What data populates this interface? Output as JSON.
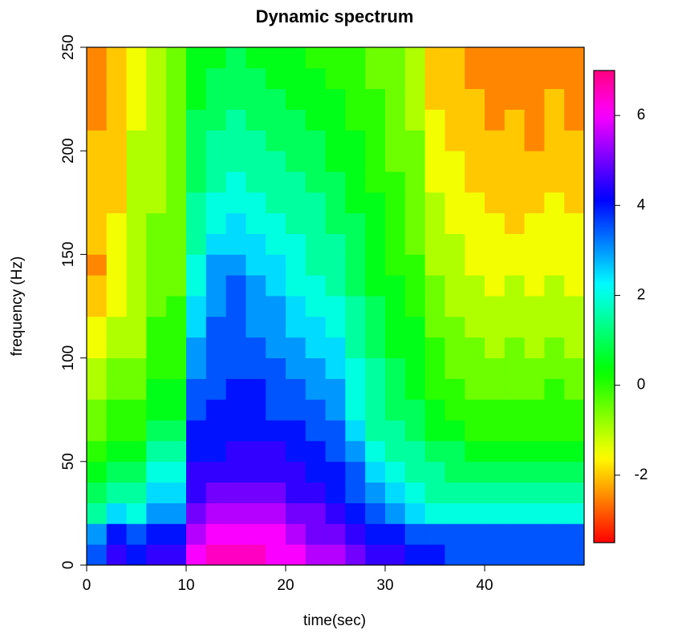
{
  "chart_data": {
    "type": "heatmap",
    "title": "Dynamic spectrum",
    "xlabel": "time(sec)",
    "ylabel": "frequency (Hz)",
    "colormap": "rainbow",
    "x": [
      1,
      3,
      5,
      7,
      9,
      11,
      13,
      15,
      17,
      19,
      21,
      23,
      25,
      27,
      29,
      31,
      33,
      35,
      37,
      39,
      41,
      43,
      45,
      47,
      49
    ],
    "y": [
      5,
      15,
      25,
      35,
      45,
      55,
      65,
      75,
      85,
      95,
      105,
      115,
      125,
      135,
      145,
      155,
      165,
      175,
      185,
      195,
      205,
      215,
      225,
      235,
      245
    ],
    "xlim": [
      0,
      50
    ],
    "xticks": [
      0,
      10,
      20,
      30,
      40
    ],
    "ylim": [
      0,
      250
    ],
    "yticks": [
      0,
      50,
      100,
      150,
      200,
      250
    ],
    "zlim": [
      -3.5,
      7
    ],
    "zticks": [
      -2,
      0,
      2,
      4,
      6
    ],
    "values": [
      [
        3.5,
        4.5,
        4,
        4.5,
        4.5,
        6,
        6.5,
        6.5,
        6.5,
        6,
        6,
        5.5,
        5.5,
        5,
        4.5,
        4.5,
        4,
        4,
        3.5,
        3.5,
        3.5,
        3.5,
        3.5,
        3.5,
        3.5
      ],
      [
        3,
        4,
        3.5,
        4,
        4,
        5.5,
        6,
        6,
        6,
        6,
        5.5,
        5,
        5,
        4.5,
        4,
        4,
        3.5,
        3.5,
        3.5,
        3.5,
        3.5,
        3.5,
        3.5,
        3.5,
        3.5
      ],
      [
        1.5,
        2.5,
        2,
        3,
        3,
        5,
        5.5,
        5.5,
        5.5,
        5.5,
        5,
        5,
        4.5,
        4,
        3.5,
        3,
        2.5,
        2,
        2,
        2,
        2,
        2,
        2,
        2,
        2
      ],
      [
        1,
        1.5,
        1.5,
        2.5,
        2.5,
        4.5,
        5,
        5,
        5,
        5,
        4.5,
        4.5,
        4,
        3.5,
        3,
        2.5,
        2,
        1.5,
        1.5,
        1.5,
        1.5,
        1.5,
        1.5,
        1.5,
        1.5
      ],
      [
        0.5,
        1,
        1,
        2,
        2,
        4.5,
        4.5,
        4.5,
        4.5,
        4.5,
        4.5,
        4,
        4,
        3.5,
        2.5,
        2,
        1.5,
        1.5,
        1,
        1,
        1,
        1,
        1,
        1,
        1
      ],
      [
        0,
        0.5,
        0.5,
        1.5,
        1.5,
        4,
        4,
        4.5,
        4.5,
        4.5,
        4,
        4,
        3.5,
        3,
        2,
        1.5,
        1.5,
        1,
        1,
        0.5,
        0.5,
        0.5,
        0.5,
        0.5,
        0.5
      ],
      [
        -0.5,
        0,
        0,
        1,
        1,
        4,
        4,
        4,
        4,
        4,
        4,
        3.5,
        3.5,
        2.5,
        1.5,
        1.5,
        1,
        0.5,
        0.5,
        0,
        0,
        0,
        0,
        0,
        0
      ],
      [
        -0.5,
        0,
        0,
        0.5,
        0.5,
        3.5,
        4,
        4,
        4,
        3.5,
        3.5,
        3.5,
        3,
        2,
        1.5,
        1,
        1,
        0.5,
        0,
        0,
        0,
        0,
        0,
        0,
        0
      ],
      [
        -1,
        -0.5,
        -0.5,
        0.5,
        0.5,
        3.5,
        3.5,
        4,
        4,
        3.5,
        3.5,
        3,
        3,
        2,
        1.5,
        1,
        0.5,
        0,
        0,
        -0.5,
        -0.5,
        -0.5,
        -0.5,
        0,
        -0.5
      ],
      [
        -1,
        -0.5,
        -0.5,
        0,
        0,
        3,
        3.5,
        3.5,
        3.5,
        3.5,
        3,
        3,
        2.5,
        2,
        1.5,
        1,
        0.5,
        0,
        -0.5,
        -0.5,
        -0.5,
        -0.5,
        -0.5,
        -0.5,
        -0.5
      ],
      [
        -1.5,
        -1,
        -1,
        0,
        0,
        3,
        3.5,
        3.5,
        3.5,
        3,
        3,
        2.5,
        2.5,
        1.5,
        1,
        0.5,
        0.5,
        0,
        -0.5,
        -0.5,
        -1,
        -0.5,
        -1,
        -0.5,
        -1
      ],
      [
        -1.5,
        -1,
        -1,
        0,
        0,
        2.5,
        3.5,
        3.5,
        3,
        3,
        2.5,
        2.5,
        2,
        1.5,
        1,
        0.5,
        0.5,
        -0.5,
        -0.5,
        -1,
        -1,
        -1,
        -1,
        -1,
        -1
      ],
      [
        -2,
        -1.5,
        -1,
        -0.5,
        0,
        2.5,
        3,
        3.5,
        3,
        3,
        2.5,
        2,
        2,
        1.5,
        1,
        0.5,
        0,
        -0.5,
        -1,
        -1,
        -1,
        -1,
        -1,
        -1,
        -1
      ],
      [
        -2,
        -1.5,
        -1,
        -0.5,
        -0.5,
        2,
        3,
        3.5,
        3,
        2.5,
        2,
        2,
        1.5,
        1,
        0.5,
        0.5,
        0,
        -0.5,
        -1,
        -1,
        -1.5,
        -1,
        -1.5,
        -1,
        -1.5
      ],
      [
        -2.5,
        -1.5,
        -1,
        -0.5,
        -0.5,
        2,
        3,
        3,
        2.5,
        2.5,
        2,
        1.5,
        1.5,
        1,
        0.5,
        0,
        0,
        -1,
        -1,
        -1.5,
        -1.5,
        -1.5,
        -1.5,
        -1.5,
        -1.5
      ],
      [
        -2,
        -1.5,
        -1,
        -0.5,
        -0.5,
        1.5,
        2.5,
        2.5,
        2.5,
        2,
        2,
        1.5,
        1.5,
        1,
        0.5,
        0,
        -0.5,
        -1,
        -1,
        -1.5,
        -1.5,
        -1.5,
        -1.5,
        -1.5,
        -1.5
      ],
      [
        -2,
        -1.5,
        -1,
        -0.5,
        -0.5,
        1.5,
        2,
        2.5,
        2,
        2,
        1.5,
        1.5,
        1,
        1,
        0.5,
        0,
        -0.5,
        -1,
        -1.5,
        -1.5,
        -1.5,
        -2,
        -1.5,
        -1.5,
        -1.5
      ],
      [
        -2,
        -2,
        -1,
        -1,
        -0.5,
        1.5,
        2,
        2,
        2,
        1.5,
        1.5,
        1.5,
        1,
        0.5,
        0.5,
        0,
        -0.5,
        -1,
        -1.5,
        -1.5,
        -2,
        -2,
        -2,
        -1.5,
        -2
      ],
      [
        -2,
        -2,
        -1,
        -1,
        -0.5,
        1,
        1.5,
        2,
        1.5,
        1.5,
        1.5,
        1,
        1,
        0.5,
        0,
        0,
        -0.5,
        -1.5,
        -1.5,
        -2,
        -2,
        -2,
        -2,
        -2,
        -2
      ],
      [
        -2,
        -2,
        -1,
        -1,
        -0.5,
        1,
        1.5,
        1.5,
        1.5,
        1.5,
        1,
        1,
        0.5,
        0.5,
        0,
        -0.5,
        -0.5,
        -1.5,
        -1.5,
        -2,
        -2,
        -2,
        -2,
        -2,
        -2
      ],
      [
        -2,
        -2,
        -1,
        -1,
        -0.5,
        1,
        1.5,
        1.5,
        1.5,
        1,
        1,
        1,
        0.5,
        0.5,
        0,
        -0.5,
        -0.5,
        -1.5,
        -2,
        -2,
        -2,
        -2,
        -2.5,
        -2,
        -2
      ],
      [
        -2.5,
        -2,
        -1.5,
        -1,
        -0.5,
        1,
        1,
        1.5,
        1,
        1,
        1,
        0.5,
        0.5,
        0,
        0,
        -0.5,
        -1,
        -1.5,
        -2,
        -2,
        -2.5,
        -2,
        -2.5,
        -2,
        -2.5
      ],
      [
        -2.5,
        -2,
        -1.5,
        -1,
        -0.5,
        0.5,
        1,
        1,
        1,
        1,
        0.5,
        0.5,
        0.5,
        0,
        0,
        -0.5,
        -1,
        -2,
        -2,
        -2,
        -2.5,
        -2.5,
        -2.5,
        -2,
        -2.5
      ],
      [
        -2.5,
        -2,
        -1.5,
        -1,
        -0.5,
        0.5,
        1,
        1,
        1,
        0.5,
        0.5,
        0.5,
        0,
        0,
        -0.5,
        -0.5,
        -1,
        -2,
        -2,
        -2.5,
        -2.5,
        -2.5,
        -2.5,
        -2.5,
        -2.5
      ],
      [
        -2.5,
        -2,
        -1.5,
        -1,
        -0.5,
        0.5,
        0.5,
        1,
        0.5,
        0.5,
        0.5,
        0,
        0,
        0,
        -0.5,
        -0.5,
        -1,
        -2,
        -2,
        -2.5,
        -2.5,
        -2.5,
        -2.5,
        -2.5,
        -2.5
      ]
    ]
  }
}
